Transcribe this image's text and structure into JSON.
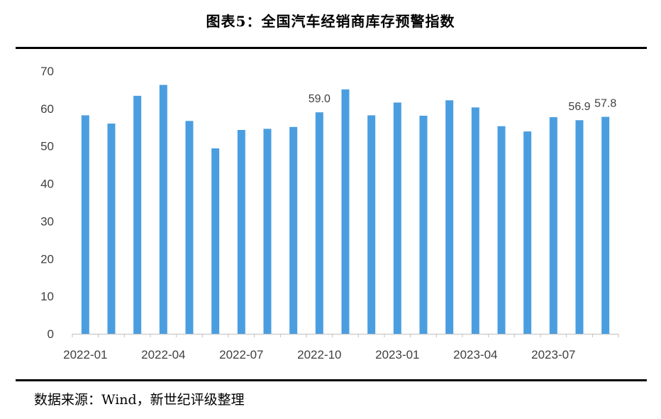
{
  "title": "图表5：全国汽车经销商库存预警指数",
  "source": "数据来源：Wind，新世纪评级整理",
  "chart_data": {
    "type": "bar",
    "categories": [
      "2022-01",
      "2022-02",
      "2022-03",
      "2022-04",
      "2022-05",
      "2022-06",
      "2022-07",
      "2022-08",
      "2022-09",
      "2022-10",
      "2022-11",
      "2022-12",
      "2023-01",
      "2023-02",
      "2023-03",
      "2023-04",
      "2023-05",
      "2023-06",
      "2023-07",
      "2023-08",
      "2023-09"
    ],
    "x_tick_labels": [
      "2022-01",
      "2022-04",
      "2022-07",
      "2022-10",
      "2023-01",
      "2023-04",
      "2023-07"
    ],
    "series": [
      {
        "values": [
          58.2,
          56.0,
          63.4,
          66.3,
          56.7,
          49.4,
          54.3,
          54.6,
          55.1,
          59.0,
          65.1,
          58.2,
          61.6,
          58.1,
          62.2,
          60.3,
          55.3,
          53.9,
          57.7,
          56.9,
          57.8
        ]
      }
    ],
    "data_labels": [
      {
        "index": 9,
        "text": "59.0"
      },
      {
        "index": 19,
        "text": "56.9"
      },
      {
        "index": 20,
        "text": "57.8"
      }
    ],
    "ylim": [
      0,
      70
    ],
    "yticks": [
      0,
      10,
      20,
      30,
      40,
      50,
      60,
      70
    ],
    "bar_color": "#4a9ee0",
    "grid": false,
    "legend": "none"
  }
}
